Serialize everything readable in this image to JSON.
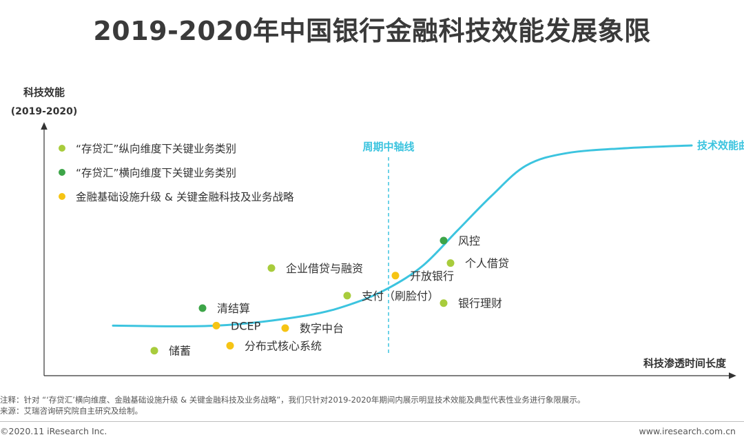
{
  "title": "2019-2020年中国银行金融科技效能发展象限",
  "colors": {
    "curve": "#3cc4df",
    "light_green": "#a8cc3c",
    "dark_green": "#3da548",
    "yellow": "#f6c414",
    "axis": "#333333",
    "midline": "#3cc4df"
  },
  "chart_data": {
    "type": "scatter",
    "ylabel": "科技效能",
    "ylabel_sub": "(2019-2020)",
    "xlabel": "科技渗透时间长度",
    "xlim": [
      0,
      100
    ],
    "ylim": [
      0,
      100
    ],
    "midline": {
      "label": "周期中轴线",
      "x": 50
    },
    "curve": {
      "label": "技术效能曲线",
      "points": [
        [
          10,
          20
        ],
        [
          25,
          20
        ],
        [
          38,
          24
        ],
        [
          45,
          29
        ],
        [
          50,
          35
        ],
        [
          55,
          44
        ],
        [
          60,
          58
        ],
        [
          65,
          72
        ],
        [
          70,
          84
        ],
        [
          76,
          89
        ],
        [
          85,
          91
        ],
        [
          94,
          92
        ]
      ]
    },
    "legend": [
      {
        "key": "vertical",
        "label": "“存贷汇”纵向维度下关键业务类别",
        "color": "#a8cc3c"
      },
      {
        "key": "horizontal",
        "label": "“存贷汇”横向维度下关键业务类别",
        "color": "#3da548"
      },
      {
        "key": "infra",
        "label": "金融基础设施升级 & 关键金融科技及业务战略",
        "color": "#f6c414"
      }
    ],
    "points": [
      {
        "label": "储蓄",
        "category": "vertical",
        "x": 16,
        "y": 10
      },
      {
        "label": "清结算",
        "category": "horizontal",
        "x": 23,
        "y": 27
      },
      {
        "label": "DCEP",
        "category": "infra",
        "x": 25,
        "y": 20
      },
      {
        "label": "分布式核心系统",
        "category": "infra",
        "x": 27,
        "y": 12
      },
      {
        "label": "企业借贷与融资",
        "category": "vertical",
        "x": 33,
        "y": 43
      },
      {
        "label": "数字中台",
        "category": "infra",
        "x": 35,
        "y": 19
      },
      {
        "label": "支付（刷脸付）",
        "category": "vertical",
        "x": 44,
        "y": 32
      },
      {
        "label": "开放银行",
        "category": "infra",
        "x": 51,
        "y": 40
      },
      {
        "label": "风控",
        "category": "horizontal",
        "x": 58,
        "y": 54
      },
      {
        "label": "个人借贷",
        "category": "vertical",
        "x": 59,
        "y": 45
      },
      {
        "label": "银行理财",
        "category": "vertical",
        "x": 58,
        "y": 29
      }
    ]
  },
  "notes": {
    "note": "注释：针对 “‘存贷汇’横向维度、金融基础设施升级 & 关键金融科技及业务战略”，我们只针对2019-2020年期间内展示明显技术效能及典型代表性业务进行象限展示。",
    "source": "来源：艾瑞咨询研究院自主研究及绘制。"
  },
  "footer": {
    "copyright": "©2020.11 iResearch Inc.",
    "website": "www.iresearch.com.cn"
  }
}
